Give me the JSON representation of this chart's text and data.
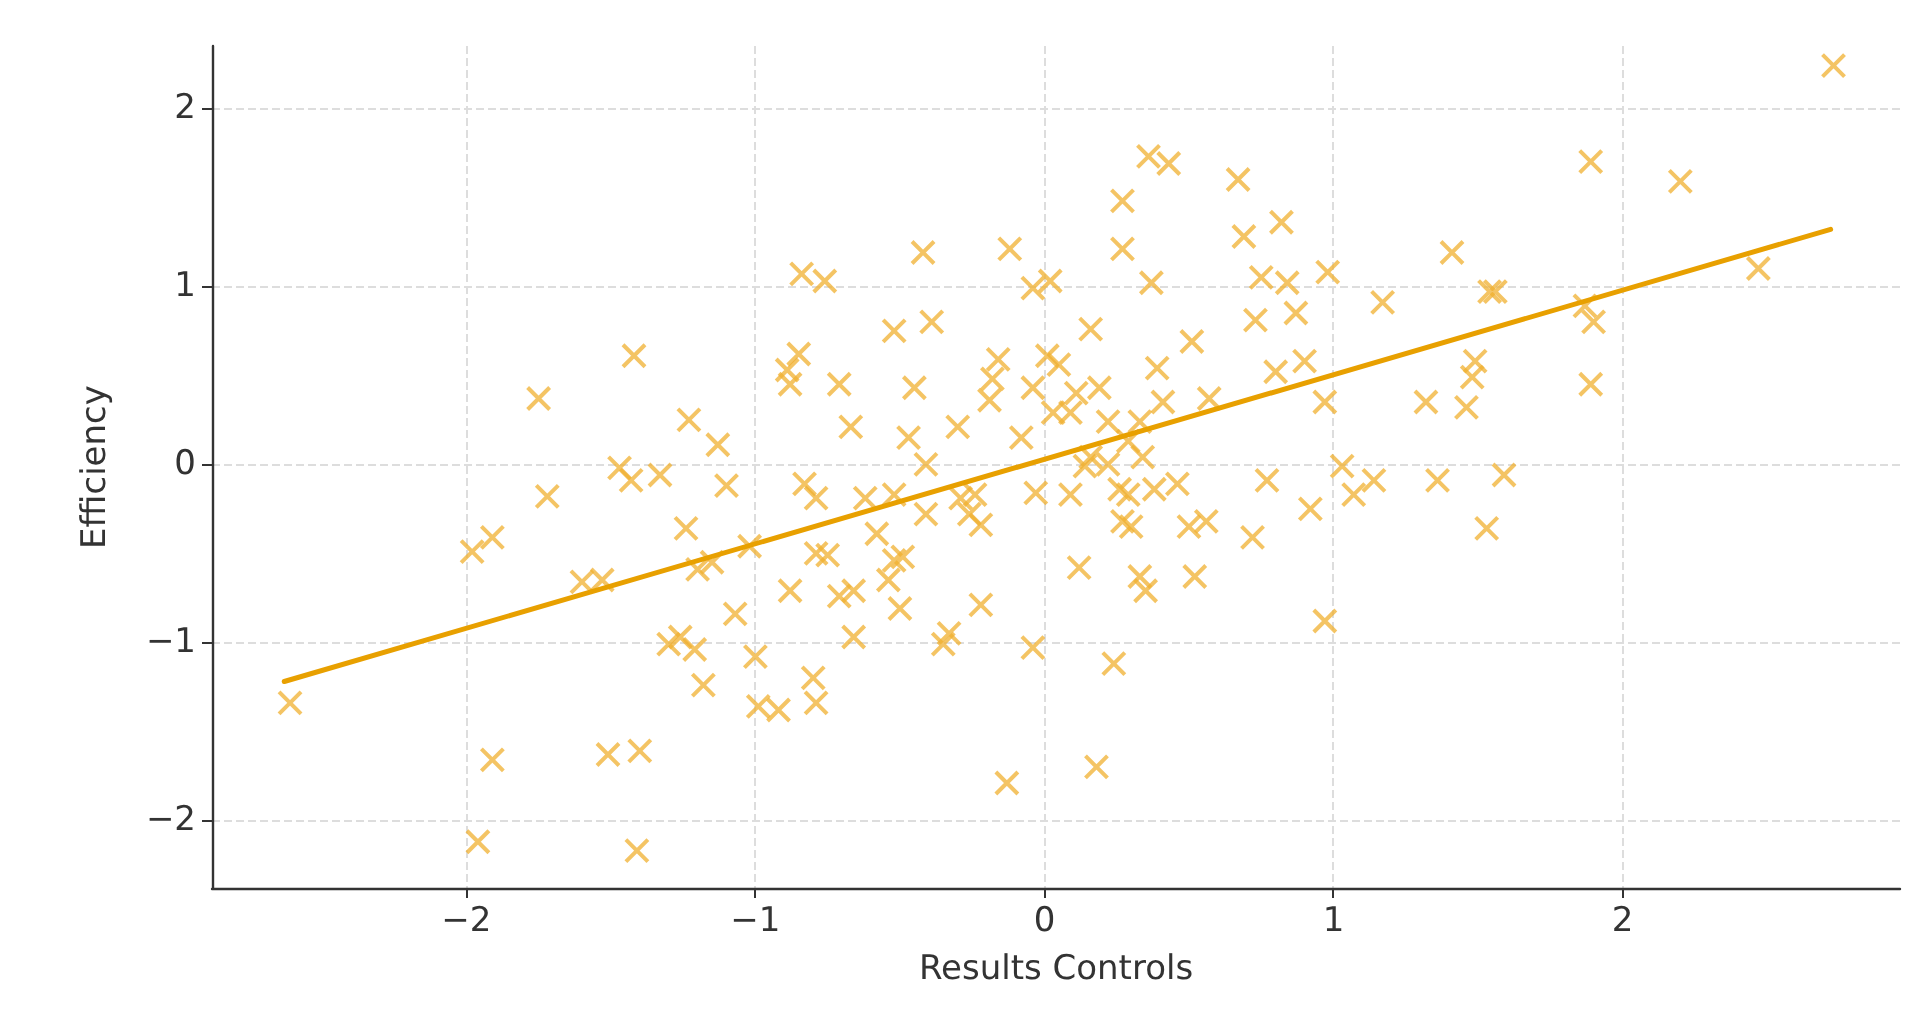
{
  "chart_data": {
    "type": "scatter",
    "xlabel": "Results Controls",
    "ylabel": "Efficiency",
    "xlim": [
      -2.88,
      2.96
    ],
    "ylim": [
      -2.38,
      2.35
    ],
    "xticks": [
      -2,
      -1,
      0,
      1,
      2
    ],
    "yticks": [
      -2,
      -1,
      0,
      1,
      2
    ],
    "grid": true,
    "series": [
      {
        "color": "#f0b030",
        "marker": "cross",
        "x": [
          -2.61,
          -1.75,
          -1.98,
          -1.91,
          -1.96,
          -1.91,
          -1.72,
          -1.6,
          -1.53,
          -1.51,
          -1.42,
          -1.47,
          -1.43,
          -1.4,
          -1.41,
          -1.33,
          -1.3,
          -1.26,
          -1.23,
          -1.24,
          -1.2,
          -1.15,
          -1.21,
          -1.18,
          -1.13,
          -1.1,
          -1.07,
          -1.02,
          -1.0,
          -0.99,
          -0.92,
          -0.88,
          -0.89,
          -0.85,
          -0.88,
          -0.84,
          -0.76,
          -0.83,
          -0.79,
          -0.79,
          -0.75,
          -0.8,
          -0.79,
          -0.71,
          -0.67,
          -0.71,
          -0.66,
          -0.66,
          -0.62,
          -0.58,
          -0.54,
          -0.52,
          -0.52,
          -0.52,
          -0.49,
          -0.47,
          -0.45,
          -0.42,
          -0.39,
          -0.41,
          -0.41,
          -0.5,
          -0.35,
          -0.33,
          -0.3,
          -0.24,
          -0.22,
          -0.22,
          -0.19,
          -0.18,
          -0.16,
          -0.12,
          -0.13,
          -0.08,
          -0.04,
          -0.03,
          -0.04,
          0.02,
          -0.04,
          0.01,
          0.03,
          0.09,
          0.11,
          0.12,
          0.14,
          0.16,
          0.18,
          0.24,
          0.19,
          0.22,
          0.27,
          0.27,
          0.29,
          0.3,
          0.33,
          0.35,
          0.36,
          0.43,
          0.37,
          0.39,
          0.41,
          0.46,
          0.5,
          0.56,
          0.52,
          0.51,
          0.57,
          0.67,
          0.69,
          0.73,
          0.72,
          0.75,
          0.77,
          0.8,
          0.82,
          0.84,
          0.87,
          0.9,
          0.92,
          0.97,
          0.98,
          0.97,
          1.03,
          1.07,
          1.14,
          1.17,
          1.32,
          1.36,
          1.41,
          1.46,
          1.48,
          1.49,
          1.54,
          1.56,
          1.53,
          1.59,
          1.87,
          1.89,
          1.9,
          1.89,
          2.2,
          2.47,
          2.73,
          0.22,
          0.26,
          0.29,
          0.16,
          0.33,
          0.34,
          0.38,
          0.27,
          -0.26,
          -0.29,
          0.09,
          0.05
        ],
        "values": [
          -1.34,
          0.37,
          -0.49,
          -0.41,
          -2.12,
          -1.66,
          -0.18,
          -0.66,
          -0.65,
          -1.63,
          0.61,
          -0.02,
          -0.09,
          -1.61,
          -2.17,
          -0.06,
          -1.01,
          -0.97,
          0.25,
          -0.36,
          -0.59,
          -0.55,
          -1.04,
          -1.24,
          0.11,
          -0.12,
          -0.84,
          -0.46,
          -1.08,
          -1.36,
          -1.38,
          0.45,
          0.53,
          0.62,
          -0.71,
          1.07,
          1.03,
          -0.11,
          -0.19,
          -0.5,
          -0.51,
          -1.2,
          -1.34,
          0.45,
          0.21,
          -0.74,
          -0.71,
          -0.97,
          -0.19,
          -0.39,
          -0.65,
          -0.54,
          0.75,
          -0.17,
          -0.52,
          0.15,
          0.43,
          1.19,
          0.8,
          0,
          -0.28,
          -0.81,
          -1.01,
          -0.95,
          0.21,
          -0.17,
          -0.34,
          -0.79,
          0.36,
          0.48,
          0.59,
          1.21,
          -1.79,
          0.15,
          -1.03,
          -0.16,
          0.43,
          1.03,
          0.99,
          0.61,
          0.29,
          -0.17,
          0.4,
          -0.58,
          -0.01,
          0.76,
          -1.7,
          -1.12,
          0.43,
          0.24,
          1.48,
          1.21,
          -0.17,
          -0.35,
          -0.63,
          -0.71,
          1.73,
          1.69,
          1.02,
          0.54,
          0.35,
          -0.11,
          -0.35,
          -0.32,
          -0.63,
          0.69,
          0.37,
          1.6,
          1.28,
          0.81,
          -0.41,
          1.05,
          -0.09,
          0.52,
          1.36,
          1.02,
          0.85,
          0.58,
          -0.25,
          -0.88,
          1.08,
          0.35,
          -0.01,
          -0.17,
          -0.09,
          0.91,
          0.35,
          -0.09,
          1.19,
          0.32,
          0.49,
          0.58,
          0.97,
          0.97,
          -0.36,
          -0.06,
          0.89,
          0.45,
          0.8,
          1.7,
          1.59,
          1.1,
          2.24,
          0,
          -0.14,
          0.13,
          0.04,
          0.24,
          0.04,
          -0.14,
          -0.32,
          -0.28,
          -0.19,
          0.29,
          0.56
        ]
      },
      {
        "type": "line",
        "marker": "none",
        "color": "#e8a000",
        "x": [
          -2.63,
          2.72
        ],
        "values": [
          -1.22,
          1.32
        ]
      }
    ]
  }
}
